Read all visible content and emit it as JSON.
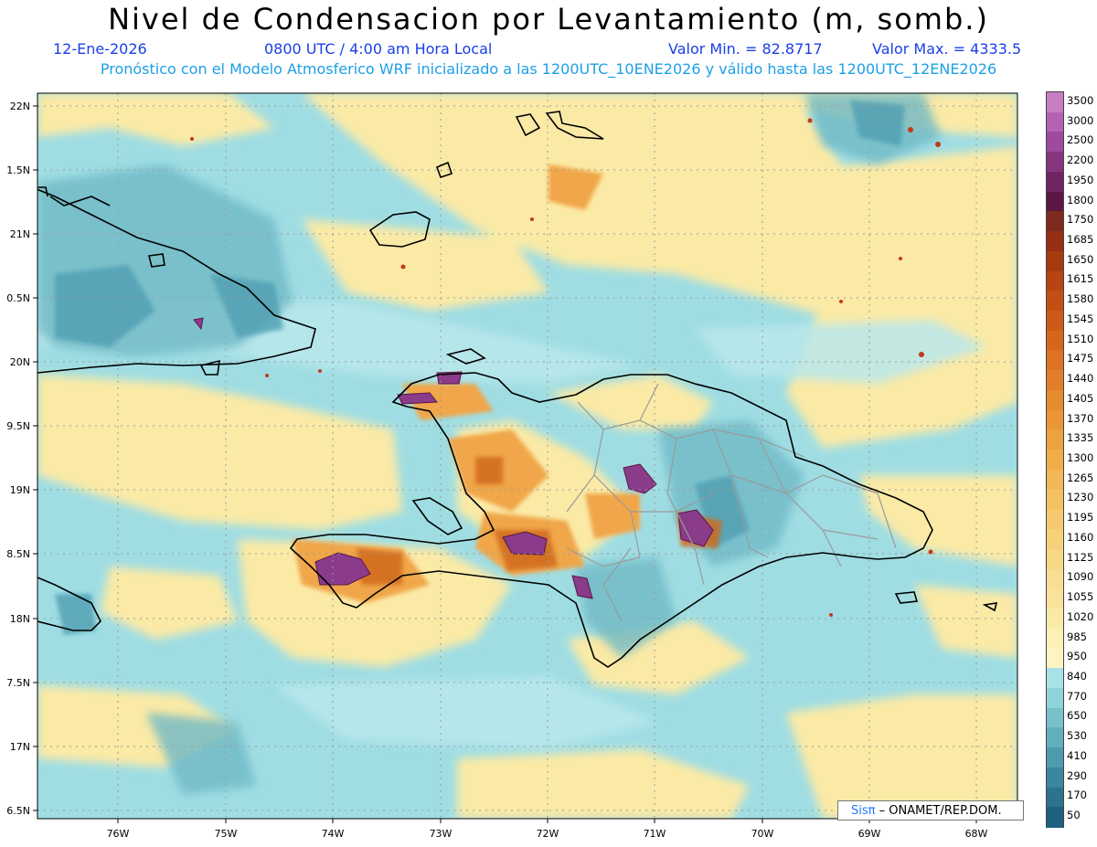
{
  "header": {
    "title": "Nivel de Condensacion por Levantamiento (m, somb.)",
    "date": "12-Ene-2026",
    "time": "0800 UTC / 4:00 am Hora Local",
    "vmin": "Valor Min. = 82.8717",
    "vmax": "Valor Max. = 4333.5",
    "forecast": "Pronóstico con el Modelo Atmosferico WRF inicializado a las 1200UTC_10ENE2026 y válido hasta las  1200UTC_12ENE2026"
  },
  "map": {
    "lon_labels": [
      "76W",
      "75W",
      "74W",
      "73W",
      "72W",
      "71W",
      "70W",
      "69W",
      "68W"
    ],
    "lat_labels": [
      "22N",
      "1.5N",
      "21N",
      "0.5N",
      "20N",
      "9.5N",
      "19N",
      "8.5N",
      "18N",
      "7.5N",
      "17N",
      "6.5N"
    ]
  },
  "colorbar": {
    "labels": [
      "3500",
      "3000",
      "2500",
      "2200",
      "1950",
      "1800",
      "1750",
      "1685",
      "1650",
      "1615",
      "1580",
      "1545",
      "1510",
      "1475",
      "1440",
      "1405",
      "1370",
      "1335",
      "1300",
      "1265",
      "1230",
      "1195",
      "1160",
      "1125",
      "1090",
      "1055",
      "1020",
      "985",
      "950",
      "840",
      "770",
      "650",
      "530",
      "410",
      "290",
      "170",
      "50"
    ],
    "colors": [
      "#c67dc2",
      "#b462b3",
      "#9d4a9f",
      "#86357f",
      "#702563",
      "#5c1646",
      "#7e2a1e",
      "#962f14",
      "#a83a12",
      "#b94312",
      "#c54e14",
      "#cf5a18",
      "#d7661c",
      "#de7224",
      "#e27e2a",
      "#e68a30",
      "#ea9638",
      "#eda240",
      "#f0ad4a",
      "#f2b756",
      "#f4c162",
      "#f5ca6e",
      "#f6d17a",
      "#f7d886",
      "#f8de92",
      "#f9e39c",
      "#faeaa8",
      "#fbf0b5",
      "#fcf5c2",
      "#a6e2e6",
      "#8fd2d9",
      "#78c1cb",
      "#62afbd",
      "#4e9baf",
      "#3c87a0",
      "#2c7390",
      "#1f6080"
    ]
  },
  "credit": {
    "sis": "Sisπ",
    "rest": " – ONAMET/REP.DOM."
  }
}
